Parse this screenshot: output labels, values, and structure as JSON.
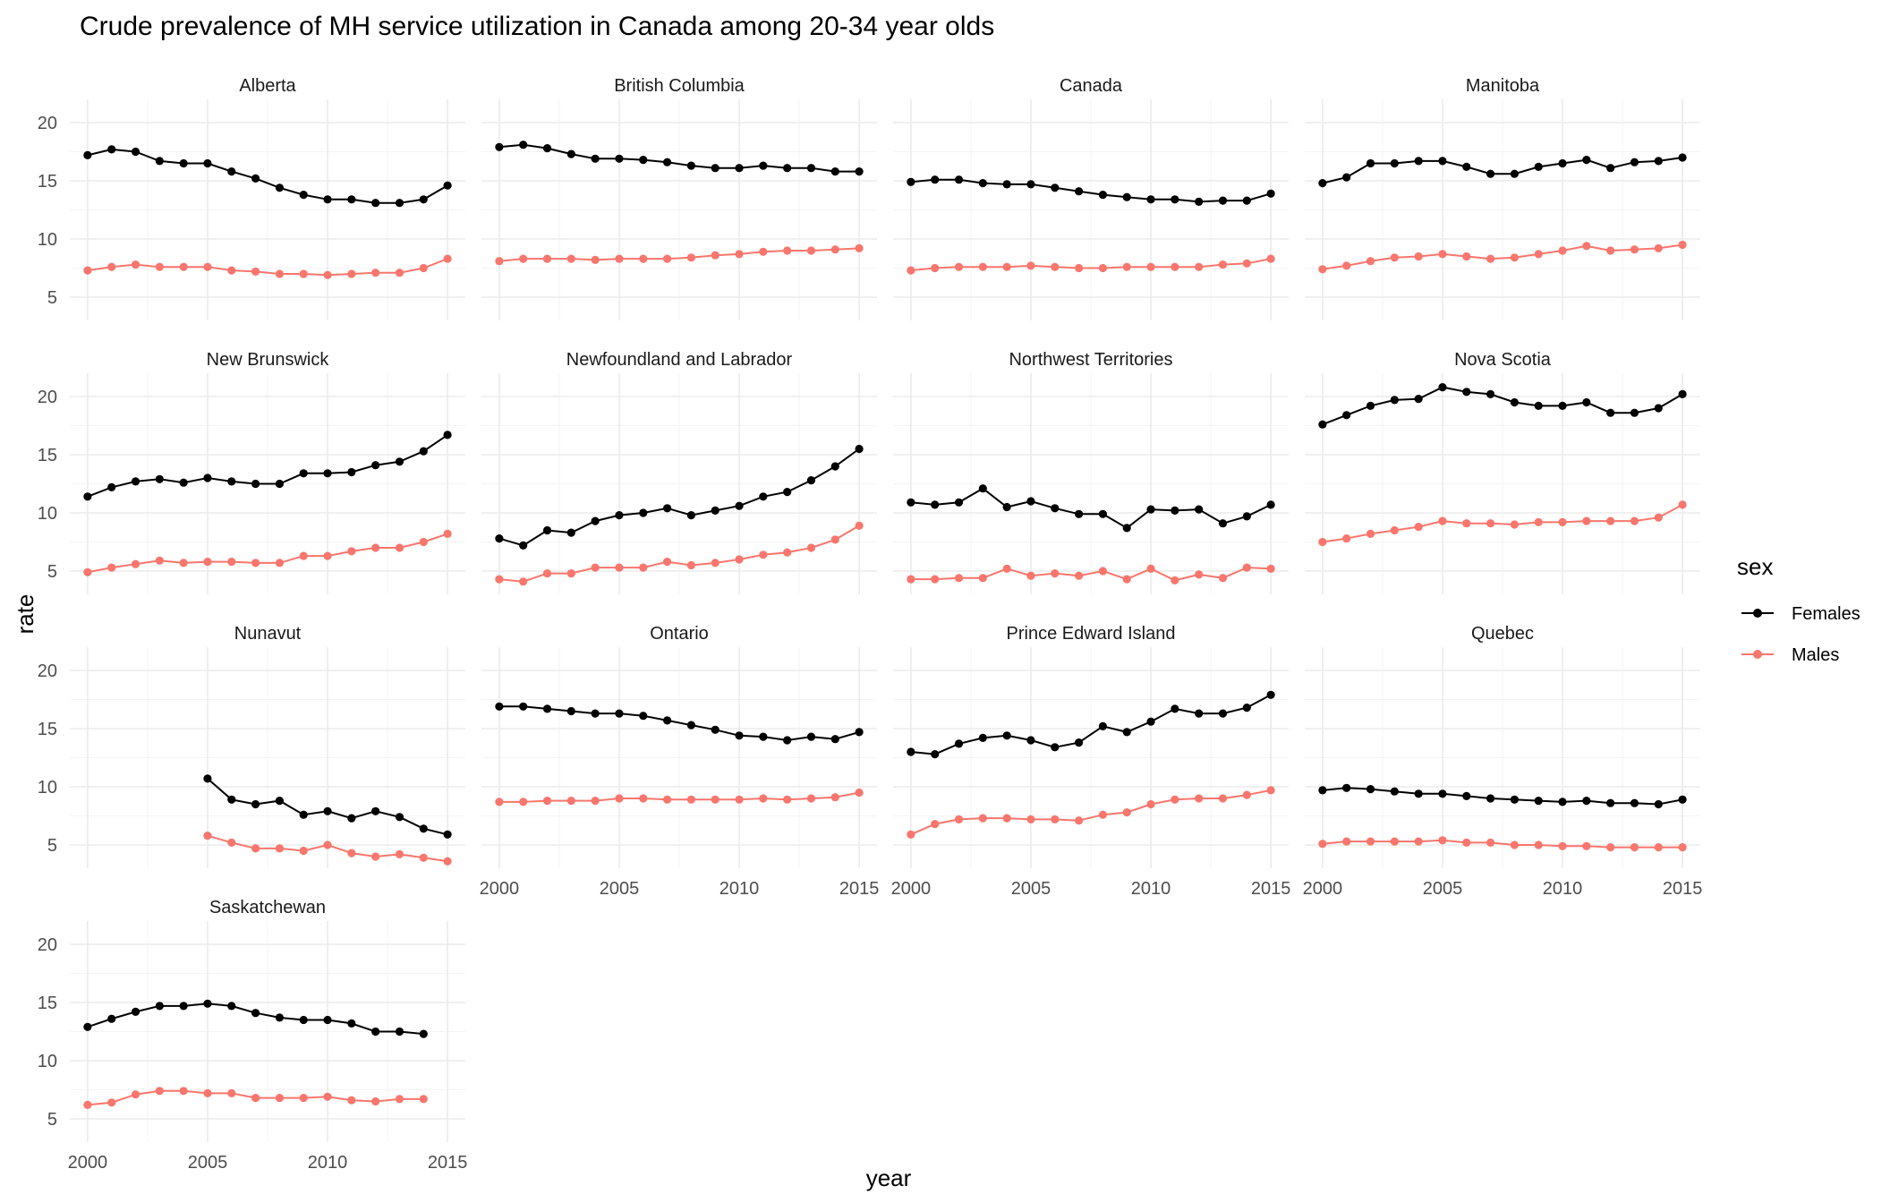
{
  "chart_data": {
    "type": "line",
    "title": "Crude prevalence of MH service utilization in Canada among 20-34 year olds",
    "xlabel": "year",
    "ylabel": "rate",
    "xlim": [
      2000,
      2015
    ],
    "ylim": [
      3,
      22
    ],
    "x_ticks": [
      2000,
      2005,
      2010,
      2015
    ],
    "y_ticks": [
      5,
      10,
      15,
      20
    ],
    "grid": true,
    "legend": {
      "title": "sex",
      "placement": "right",
      "entries": [
        {
          "label": "Females",
          "color": "#000000"
        },
        {
          "label": "Males",
          "color": "#F8766D"
        }
      ]
    },
    "panels": [
      {
        "name": "Alberta",
        "x": [
          2000,
          2001,
          2002,
          2003,
          2004,
          2005,
          2006,
          2007,
          2008,
          2009,
          2010,
          2011,
          2012,
          2013,
          2014,
          2015
        ],
        "series": [
          {
            "name": "Females",
            "values": [
              17.2,
              17.7,
              17.5,
              16.7,
              16.5,
              16.5,
              15.8,
              15.2,
              14.4,
              13.8,
              13.4,
              13.4,
              13.1,
              13.1,
              13.4,
              14.6
            ]
          },
          {
            "name": "Males",
            "values": [
              7.3,
              7.6,
              7.8,
              7.6,
              7.6,
              7.6,
              7.3,
              7.2,
              7.0,
              7.0,
              6.9,
              7.0,
              7.1,
              7.1,
              7.5,
              8.3
            ]
          }
        ]
      },
      {
        "name": "British Columbia",
        "x": [
          2000,
          2001,
          2002,
          2003,
          2004,
          2005,
          2006,
          2007,
          2008,
          2009,
          2010,
          2011,
          2012,
          2013,
          2014,
          2015
        ],
        "series": [
          {
            "name": "Females",
            "values": [
              17.9,
              18.1,
              17.8,
              17.3,
              16.9,
              16.9,
              16.8,
              16.6,
              16.3,
              16.1,
              16.1,
              16.3,
              16.1,
              16.1,
              15.8,
              15.8
            ]
          },
          {
            "name": "Males",
            "values": [
              8.1,
              8.3,
              8.3,
              8.3,
              8.2,
              8.3,
              8.3,
              8.3,
              8.4,
              8.6,
              8.7,
              8.9,
              9.0,
              9.0,
              9.1,
              9.2
            ]
          }
        ]
      },
      {
        "name": "Canada",
        "x": [
          2000,
          2001,
          2002,
          2003,
          2004,
          2005,
          2006,
          2007,
          2008,
          2009,
          2010,
          2011,
          2012,
          2013,
          2014,
          2015
        ],
        "series": [
          {
            "name": "Females",
            "values": [
              14.9,
              15.1,
              15.1,
              14.8,
              14.7,
              14.7,
              14.4,
              14.1,
              13.8,
              13.6,
              13.4,
              13.4,
              13.2,
              13.3,
              13.3,
              13.9
            ]
          },
          {
            "name": "Males",
            "values": [
              7.3,
              7.5,
              7.6,
              7.6,
              7.6,
              7.7,
              7.6,
              7.5,
              7.5,
              7.6,
              7.6,
              7.6,
              7.6,
              7.8,
              7.9,
              8.3
            ]
          }
        ]
      },
      {
        "name": "Manitoba",
        "x": [
          2000,
          2001,
          2002,
          2003,
          2004,
          2005,
          2006,
          2007,
          2008,
          2009,
          2010,
          2011,
          2012,
          2013,
          2014,
          2015
        ],
        "series": [
          {
            "name": "Females",
            "values": [
              14.8,
              15.3,
              16.5,
              16.5,
              16.7,
              16.7,
              16.2,
              15.6,
              15.6,
              16.2,
              16.5,
              16.8,
              16.1,
              16.6,
              16.7,
              17.0
            ]
          },
          {
            "name": "Males",
            "values": [
              7.4,
              7.7,
              8.1,
              8.4,
              8.5,
              8.7,
              8.5,
              8.3,
              8.4,
              8.7,
              9.0,
              9.4,
              9.0,
              9.1,
              9.2,
              9.5
            ]
          }
        ]
      },
      {
        "name": "New Brunswick",
        "x": [
          2000,
          2001,
          2002,
          2003,
          2004,
          2005,
          2006,
          2007,
          2008,
          2009,
          2010,
          2011,
          2012,
          2013,
          2014,
          2015
        ],
        "series": [
          {
            "name": "Females",
            "values": [
              11.4,
              12.2,
              12.7,
              12.9,
              12.6,
              13.0,
              12.7,
              12.5,
              12.5,
              13.4,
              13.4,
              13.5,
              14.1,
              14.4,
              15.3,
              16.7
            ]
          },
          {
            "name": "Males",
            "values": [
              4.9,
              5.3,
              5.6,
              5.9,
              5.7,
              5.8,
              5.8,
              5.7,
              5.7,
              6.3,
              6.3,
              6.7,
              7.0,
              7.0,
              7.5,
              8.2
            ]
          }
        ]
      },
      {
        "name": "Newfoundland and Labrador",
        "x": [
          2000,
          2001,
          2002,
          2003,
          2004,
          2005,
          2006,
          2007,
          2008,
          2009,
          2010,
          2011,
          2012,
          2013,
          2014,
          2015
        ],
        "series": [
          {
            "name": "Females",
            "values": [
              7.8,
              7.2,
              8.5,
              8.3,
              9.3,
              9.8,
              10.0,
              10.4,
              9.8,
              10.2,
              10.6,
              11.4,
              11.8,
              12.8,
              14.0,
              15.5
            ]
          },
          {
            "name": "Males",
            "values": [
              4.3,
              4.1,
              4.8,
              4.8,
              5.3,
              5.3,
              5.3,
              5.8,
              5.5,
              5.7,
              6.0,
              6.4,
              6.6,
              7.0,
              7.7,
              8.9
            ]
          }
        ]
      },
      {
        "name": "Northwest Territories",
        "x": [
          2000,
          2001,
          2002,
          2003,
          2004,
          2005,
          2006,
          2007,
          2008,
          2009,
          2010,
          2011,
          2012,
          2013,
          2014,
          2015
        ],
        "series": [
          {
            "name": "Females",
            "values": [
              10.9,
              10.7,
              10.9,
              12.1,
              10.5,
              11.0,
              10.4,
              9.9,
              9.9,
              8.7,
              10.3,
              10.2,
              10.3,
              9.1,
              9.7,
              10.7
            ]
          },
          {
            "name": "Males",
            "values": [
              4.3,
              4.3,
              4.4,
              4.4,
              5.2,
              4.6,
              4.8,
              4.6,
              5.0,
              4.3,
              5.2,
              4.2,
              4.7,
              4.4,
              5.3,
              5.2
            ]
          }
        ]
      },
      {
        "name": "Nova Scotia",
        "x": [
          2000,
          2001,
          2002,
          2003,
          2004,
          2005,
          2006,
          2007,
          2008,
          2009,
          2010,
          2011,
          2012,
          2013,
          2014,
          2015
        ],
        "series": [
          {
            "name": "Females",
            "values": [
              17.6,
              18.4,
              19.2,
              19.7,
              19.8,
              20.8,
              20.4,
              20.2,
              19.5,
              19.2,
              19.2,
              19.5,
              18.6,
              18.6,
              19.0,
              20.2
            ]
          },
          {
            "name": "Males",
            "values": [
              7.5,
              7.8,
              8.2,
              8.5,
              8.8,
              9.3,
              9.1,
              9.1,
              9.0,
              9.2,
              9.2,
              9.3,
              9.3,
              9.3,
              9.6,
              10.7
            ]
          }
        ]
      },
      {
        "name": "Nunavut",
        "x": [
          2005,
          2006,
          2007,
          2008,
          2009,
          2010,
          2011,
          2012,
          2013,
          2014,
          2015
        ],
        "series": [
          {
            "name": "Females",
            "values": [
              10.7,
              8.9,
              8.5,
              8.8,
              7.6,
              7.9,
              7.3,
              7.9,
              7.4,
              6.4,
              5.9
            ]
          },
          {
            "name": "Males",
            "values": [
              5.8,
              5.2,
              4.7,
              4.7,
              4.5,
              5.0,
              4.3,
              4.0,
              4.2,
              3.9,
              3.6
            ]
          }
        ]
      },
      {
        "name": "Ontario",
        "x": [
          2000,
          2001,
          2002,
          2003,
          2004,
          2005,
          2006,
          2007,
          2008,
          2009,
          2010,
          2011,
          2012,
          2013,
          2014,
          2015
        ],
        "series": [
          {
            "name": "Females",
            "values": [
              16.9,
              16.9,
              16.7,
              16.5,
              16.3,
              16.3,
              16.1,
              15.7,
              15.3,
              14.9,
              14.4,
              14.3,
              14.0,
              14.3,
              14.1,
              14.7
            ]
          },
          {
            "name": "Males",
            "values": [
              8.7,
              8.7,
              8.8,
              8.8,
              8.8,
              9.0,
              9.0,
              8.9,
              8.9,
              8.9,
              8.9,
              9.0,
              8.9,
              9.0,
              9.1,
              9.5
            ]
          }
        ]
      },
      {
        "name": "Prince Edward Island",
        "x": [
          2000,
          2001,
          2002,
          2003,
          2004,
          2005,
          2006,
          2007,
          2008,
          2009,
          2010,
          2011,
          2012,
          2013,
          2014,
          2015
        ],
        "series": [
          {
            "name": "Females",
            "values": [
              13.0,
              12.8,
              13.7,
              14.2,
              14.4,
              14.0,
              13.4,
              13.8,
              15.2,
              14.7,
              15.6,
              16.7,
              16.3,
              16.3,
              16.8,
              17.9
            ]
          },
          {
            "name": "Males",
            "values": [
              5.9,
              6.8,
              7.2,
              7.3,
              7.3,
              7.2,
              7.2,
              7.1,
              7.6,
              7.8,
              8.5,
              8.9,
              9.0,
              9.0,
              9.3,
              9.7
            ]
          }
        ]
      },
      {
        "name": "Quebec",
        "x": [
          2000,
          2001,
          2002,
          2003,
          2004,
          2005,
          2006,
          2007,
          2008,
          2009,
          2010,
          2011,
          2012,
          2013,
          2014,
          2015
        ],
        "series": [
          {
            "name": "Females",
            "values": [
              9.7,
              9.9,
              9.8,
              9.6,
              9.4,
              9.4,
              9.2,
              9.0,
              8.9,
              8.8,
              8.7,
              8.8,
              8.6,
              8.6,
              8.5,
              8.9
            ]
          },
          {
            "name": "Males",
            "values": [
              5.1,
              5.3,
              5.3,
              5.3,
              5.3,
              5.4,
              5.2,
              5.2,
              5.0,
              5.0,
              4.9,
              4.9,
              4.8,
              4.8,
              4.8,
              4.8
            ]
          }
        ]
      },
      {
        "name": "Saskatchewan",
        "x": [
          2000,
          2001,
          2002,
          2003,
          2004,
          2005,
          2006,
          2007,
          2008,
          2009,
          2010,
          2011,
          2012,
          2013,
          2014
        ],
        "series": [
          {
            "name": "Females",
            "values": [
              12.9,
              13.6,
              14.2,
              14.7,
              14.7,
              14.9,
              14.7,
              14.1,
              13.7,
              13.5,
              13.5,
              13.2,
              12.5,
              12.5,
              12.3
            ]
          },
          {
            "name": "Males",
            "values": [
              6.2,
              6.4,
              7.1,
              7.4,
              7.4,
              7.2,
              7.2,
              6.8,
              6.8,
              6.8,
              6.9,
              6.6,
              6.5,
              6.7,
              6.7
            ]
          }
        ]
      }
    ]
  }
}
